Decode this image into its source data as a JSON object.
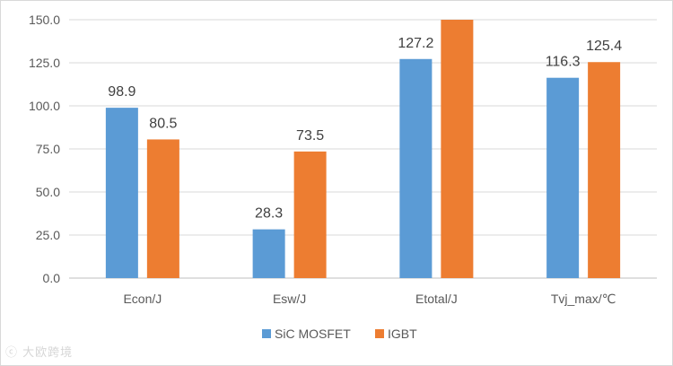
{
  "chart_data": {
    "type": "bar",
    "title": "",
    "xlabel": "",
    "ylabel": "",
    "categories": [
      "Econ/J",
      "Esw/J",
      "Etotal/J",
      "Tvj_max/℃"
    ],
    "series": [
      {
        "name": "SiC MOSFET",
        "color": "#5B9BD5",
        "values": [
          98.9,
          28.3,
          127.2,
          116.3
        ]
      },
      {
        "name": "IGBT",
        "color": "#ED7D31",
        "values": [
          80.5,
          73.5,
          150.0,
          125.4
        ]
      }
    ],
    "data_labels": [
      [
        "98.9",
        "28.3",
        "127.2",
        "116.3"
      ],
      [
        "80.5",
        "73.5",
        "",
        "125.4"
      ]
    ],
    "ylim": [
      0,
      150
    ],
    "yticks": [
      0,
      25,
      50,
      75,
      100,
      125,
      150
    ],
    "ytick_labels": [
      "0.0",
      "25.0",
      "50.0",
      "75.0",
      "100.0",
      "125.0",
      "150.0"
    ],
    "grid": true,
    "legend_position": "bottom"
  },
  "watermark": "ⓒ 大欧跨境"
}
